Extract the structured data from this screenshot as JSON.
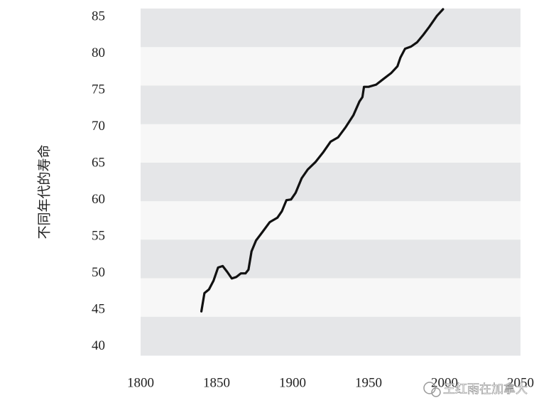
{
  "chart_data": {
    "type": "line",
    "y_label": "不同年代的寿命",
    "x": [
      1840,
      1842,
      1845,
      1848,
      1851,
      1854,
      1857,
      1860,
      1863,
      1866,
      1869,
      1871,
      1873,
      1876,
      1880,
      1885,
      1890,
      1893,
      1896,
      1899,
      1902,
      1906,
      1910,
      1915,
      1920,
      1925,
      1930,
      1935,
      1940,
      1944,
      1946,
      1947,
      1950,
      1955,
      1960,
      1965,
      1969,
      1971,
      1974,
      1978,
      1982,
      1986,
      1990,
      1995,
      1999
    ],
    "series": [
      {
        "color": "#111111",
        "values": [
          44.8,
          47.3,
          47.8,
          49,
          50.8,
          51,
          50.2,
          49.3,
          49.5,
          50,
          50,
          50.5,
          53,
          54.5,
          55.6,
          57,
          57.6,
          58.5,
          60,
          60.1,
          61,
          63,
          64.2,
          65.2,
          66.5,
          68,
          68.6,
          70,
          71.6,
          73.5,
          74.1,
          75.5,
          75.5,
          75.8,
          76.6,
          77.4,
          78.3,
          79.5,
          80.7,
          81,
          81.6,
          82.6,
          83.7,
          85.2,
          86.1
        ]
      }
    ],
    "xlim": [
      1800,
      2050
    ],
    "xticks": [
      1800,
      1850,
      1900,
      1950,
      2000,
      2050
    ],
    "ylim": [
      38.8,
      86.2
    ],
    "yticks": [
      40,
      45,
      50,
      55,
      60,
      65,
      70,
      75,
      80,
      85
    ],
    "bands": [
      "#e5e6e8",
      "#f7f7f7"
    ]
  },
  "watermark": {
    "text": "王红雨在加拿大"
  }
}
